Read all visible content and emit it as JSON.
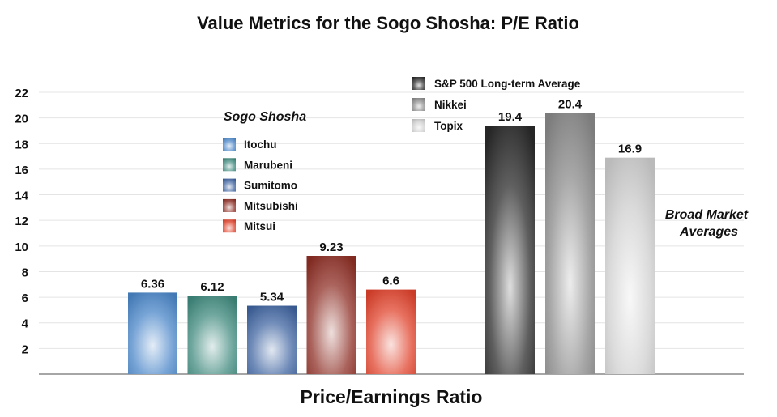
{
  "chart_data": {
    "type": "bar",
    "title": "Value Metrics for the Sogo Shosha: P/E Ratio",
    "xlabel": "Price/Earnings Ratio",
    "ylabel": "",
    "ylim": [
      0,
      22
    ],
    "yticks": [
      2,
      4,
      6,
      8,
      10,
      12,
      14,
      16,
      18,
      20,
      22
    ],
    "grid": true,
    "groups": [
      {
        "name": "Sogo Shosha",
        "legend_placement": "top-center-left",
        "series": [
          {
            "name": "Itochu",
            "value": 6.36,
            "label": "6.36",
            "color": "#4a86c8"
          },
          {
            "name": "Marubeni",
            "value": 6.12,
            "label": "6.12",
            "color": "#3f8a7d"
          },
          {
            "name": "Sumitomo",
            "value": 5.34,
            "label": "5.34",
            "color": "#3f64a0"
          },
          {
            "name": "Mitsubishi",
            "value": 9.23,
            "label": "9.23",
            "color": "#8e2f25"
          },
          {
            "name": "Mitsui",
            "value": 6.6,
            "label": "6.6",
            "color": "#e0432c"
          }
        ]
      },
      {
        "name": "Broad Market Averages",
        "legend_placement": "top-center-right",
        "series": [
          {
            "name": "S&P 500 Long-term Average",
            "value": 19.4,
            "label": "19.4",
            "color": "#2a2a2a"
          },
          {
            "name": "Nikkei",
            "value": 20.4,
            "label": "20.4",
            "color": "#8a8a8a"
          },
          {
            "name": "Topix",
            "value": 16.9,
            "label": "16.9",
            "color": "#cfcfcf"
          }
        ]
      }
    ],
    "annotations": [
      "Sogo Shosha",
      "Broad Market",
      "Averages"
    ]
  }
}
